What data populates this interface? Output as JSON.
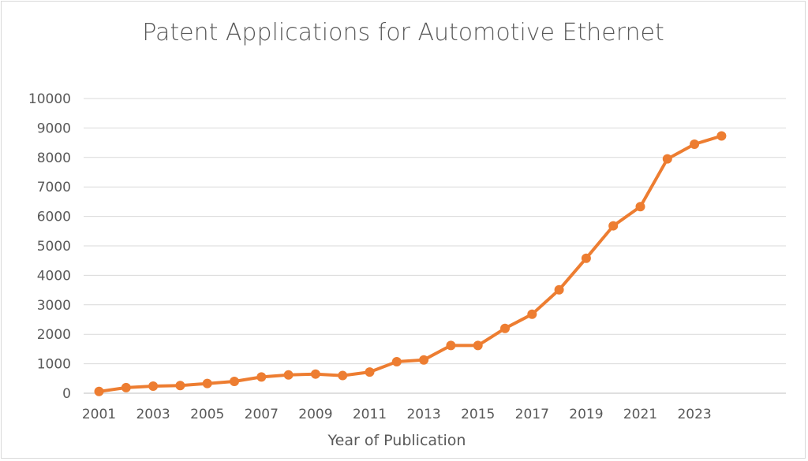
{
  "chart_data": {
    "type": "line",
    "title": "Patent Applications for Automotive Ethernet",
    "xlabel": "Year of Publication",
    "ylabel": "",
    "ylim": [
      0,
      10000
    ],
    "yticks": [
      0,
      1000,
      2000,
      3000,
      4000,
      5000,
      6000,
      7000,
      8000,
      9000,
      10000
    ],
    "xtick_labels": [
      "2001",
      "2003",
      "2005",
      "2007",
      "2009",
      "2011",
      "2013",
      "2015",
      "2017",
      "2019",
      "2021",
      "2023"
    ],
    "grid": true,
    "legend": "none",
    "color": "#ED7D31",
    "series": [
      {
        "x": [
          2001,
          2002,
          2003,
          2004,
          2005,
          2006,
          2007,
          2008,
          2009,
          2010,
          2011,
          2012,
          2013,
          2014,
          2015,
          2016,
          2017,
          2018,
          2019,
          2020,
          2021,
          2022,
          2023,
          2024
        ],
        "values": [
          60,
          190,
          240,
          260,
          330,
          400,
          550,
          620,
          650,
          600,
          720,
          1070,
          1130,
          1620,
          1620,
          2200,
          2680,
          3510,
          4580,
          5680,
          6330,
          7950,
          8450,
          8730
        ]
      }
    ]
  }
}
